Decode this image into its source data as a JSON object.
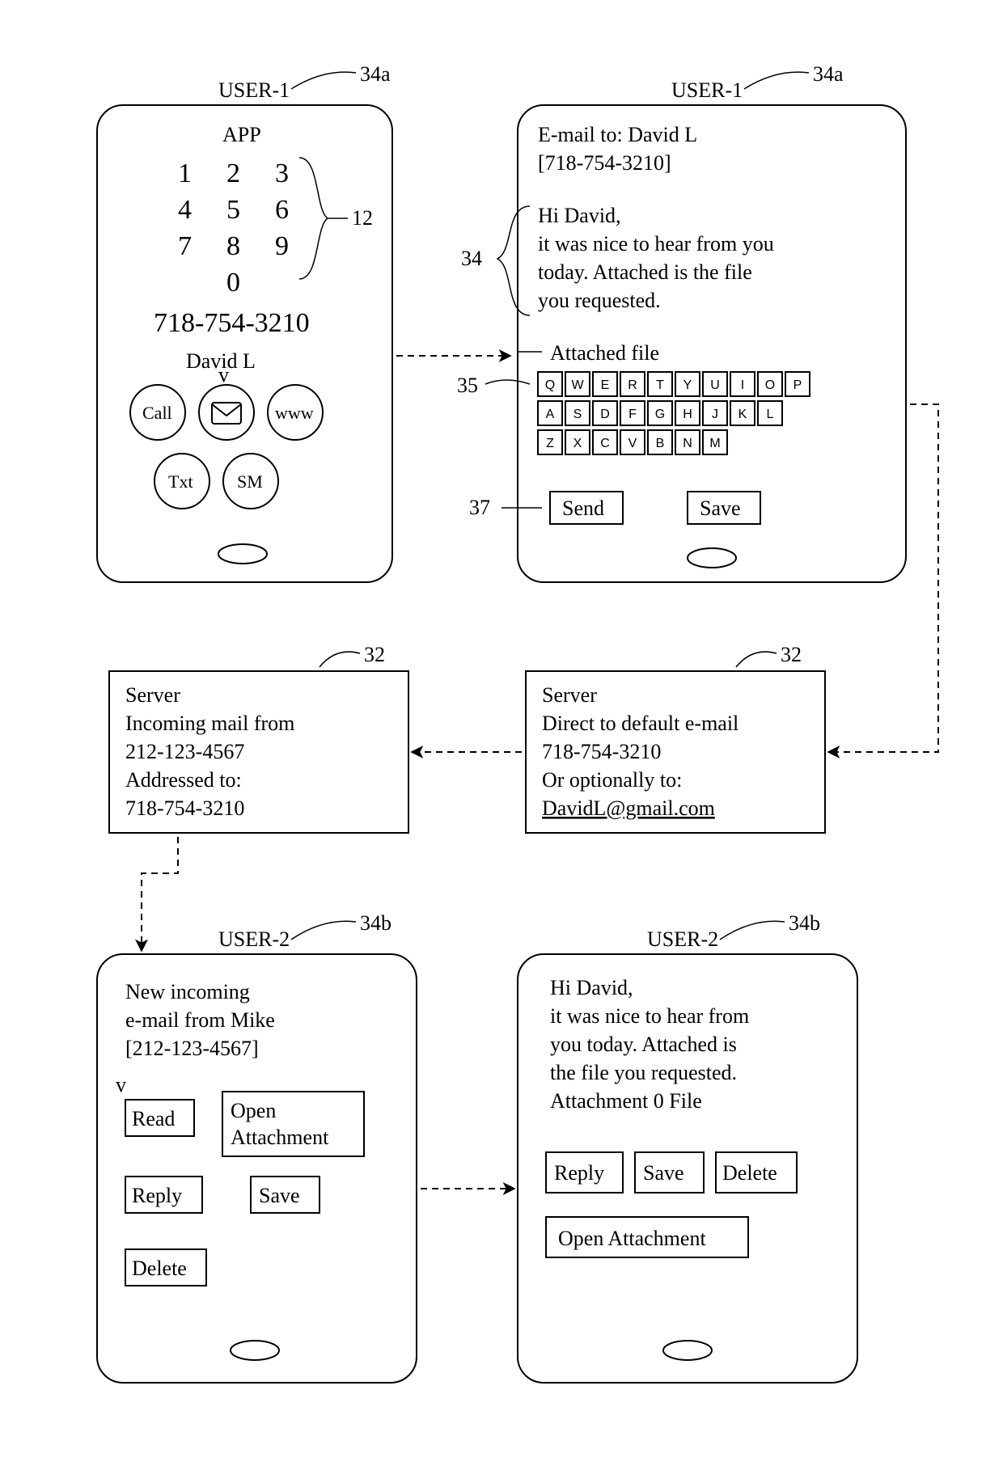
{
  "refs": {
    "device1": "34a",
    "device2": "34b",
    "keypad": "12",
    "server": "32",
    "body": "34",
    "keyboard": "35",
    "send": "37"
  },
  "labels": {
    "user1": "USER-1",
    "user2": "USER-2",
    "app": "APP",
    "server": "Server"
  },
  "phoneA": {
    "phone": "718-754-3210",
    "contact": "David L",
    "buttons": {
      "call": "Call",
      "www": "www",
      "txt": "Txt",
      "sm": "SM"
    },
    "keypad": [
      "1",
      "2",
      "3",
      "4",
      "5",
      "6",
      "7",
      "8",
      "9",
      "0"
    ]
  },
  "phoneB": {
    "to": "E-mail to: David L",
    "toPhone": "[718-754-3210]",
    "body1": "Hi David,",
    "body2": "it was nice to hear from you",
    "body3": "today. Attached is the file",
    "body4": "you requested.",
    "attached": "Attached file",
    "rows": [
      [
        "Q",
        "W",
        "E",
        "R",
        "T",
        "Y",
        "U",
        "I",
        "O",
        "P"
      ],
      [
        "A",
        "S",
        "D",
        "F",
        "G",
        "H",
        "J",
        "K",
        "L"
      ],
      [
        "Z",
        "X",
        "C",
        "V",
        "B",
        "N",
        "M"
      ]
    ],
    "send": "Send",
    "save": "Save"
  },
  "serverA": {
    "l1": "Server",
    "l2": "Incoming mail from",
    "l3": "212-123-4567",
    "l4": "Addressed to:",
    "l5": "718-754-3210"
  },
  "serverB": {
    "l1": "Server",
    "l2": "Direct to default e-mail",
    "l3": "718-754-3210",
    "l4": "Or optionally to:",
    "l5": "DavidL@gmail.com"
  },
  "phoneC": {
    "l1": "New incoming",
    "l2": "e-mail from Mike",
    "l3": "[212-123-4567]",
    "read": "Read",
    "open1": "Open",
    "open2": "Attachment",
    "reply": "Reply",
    "save": "Save",
    "delete": "Delete"
  },
  "phoneD": {
    "l1": "Hi David,",
    "l2": "it was nice to hear from",
    "l3": " you today. Attached is",
    "l4": "the file you requested.",
    "l5": "Attachment  0  File",
    "reply": "Reply",
    "save": "Save",
    "delete": "Delete",
    "open": "Open Attachment"
  },
  "style": {
    "stroke": "#000000",
    "strokeWidth": 2,
    "dash": "8,6",
    "bg": "#ffffff"
  }
}
